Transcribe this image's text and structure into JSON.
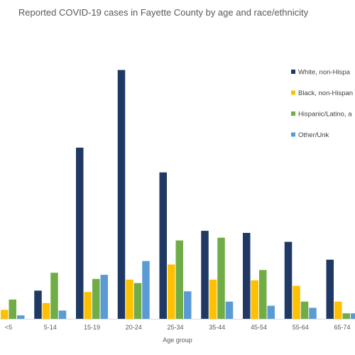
{
  "chart_data": {
    "type": "bar",
    "title": "Reported COVID-19 cases in Fayette County by age and race/ethnicity",
    "xlabel": "Age group",
    "ylabel": "",
    "categories": [
      "<5",
      "5-14",
      "15-19",
      "20-24",
      "25-34",
      "35-44",
      "45-54",
      "55-64",
      "65-74"
    ],
    "series": [
      {
        "name": "White, non-Hispa",
        "color": "#1F3864",
        "values": [
          20,
          41,
          249,
          362,
          213,
          128,
          125,
          112,
          86
        ]
      },
      {
        "name": "Black, non-Hispan",
        "color": "#FFC000",
        "values": [
          13,
          23,
          39,
          57,
          79,
          57,
          56,
          48,
          25
        ]
      },
      {
        "name": "Hispanic/Latino, a",
        "color": "#70AD47",
        "values": [
          28,
          67,
          58,
          52,
          114,
          118,
          71,
          25,
          8
        ]
      },
      {
        "name": "Other/Unk",
        "color": "#5B9BD5",
        "values": [
          5,
          12,
          64,
          84,
          40,
          25,
          19,
          16,
          8
        ]
      }
    ],
    "ylim": [
      0,
      375
    ],
    "grid": false,
    "legend": "right"
  }
}
